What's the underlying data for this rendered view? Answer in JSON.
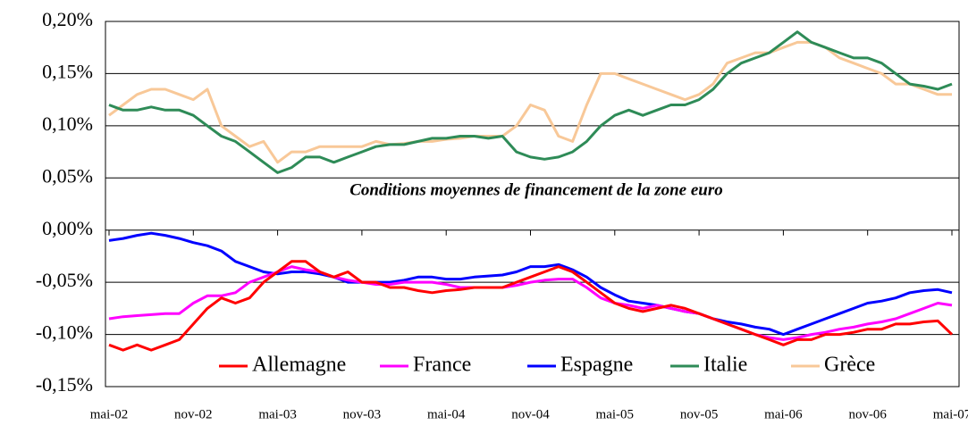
{
  "chart_data": {
    "type": "line",
    "annotation": "Conditions moyennes de financement de la zone euro",
    "categories": [
      "mai-02",
      null,
      null,
      null,
      null,
      null,
      "nov-02",
      null,
      null,
      null,
      null,
      null,
      "mai-03",
      null,
      null,
      null,
      null,
      null,
      "nov-03",
      null,
      null,
      null,
      null,
      null,
      "mai-04",
      null,
      null,
      null,
      null,
      null,
      "nov-04",
      null,
      null,
      null,
      null,
      null,
      "mai-05",
      null,
      null,
      null,
      null,
      null,
      "nov-05",
      null,
      null,
      null,
      null,
      null,
      "mai-06",
      null,
      null,
      null,
      null,
      null,
      "nov-06",
      null,
      null,
      null,
      null,
      null,
      "mai-07"
    ],
    "series": [
      {
        "name": "Allemagne",
        "color": "#ff0000",
        "values": [
          -0.11,
          -0.115,
          -0.11,
          -0.115,
          -0.11,
          -0.105,
          -0.09,
          -0.075,
          -0.065,
          -0.07,
          -0.065,
          -0.05,
          -0.04,
          -0.03,
          -0.03,
          -0.04,
          -0.045,
          -0.04,
          -0.05,
          -0.05,
          -0.055,
          -0.055,
          -0.058,
          -0.06,
          -0.058,
          -0.057,
          -0.055,
          -0.055,
          -0.055,
          -0.05,
          -0.045,
          -0.04,
          -0.035,
          -0.04,
          -0.05,
          -0.06,
          -0.07,
          -0.075,
          -0.078,
          -0.075,
          -0.072,
          -0.075,
          -0.08,
          -0.085,
          -0.09,
          -0.095,
          -0.1,
          -0.105,
          -0.11,
          -0.105,
          -0.105,
          -0.1,
          -0.1,
          -0.098,
          -0.095,
          -0.095,
          -0.09,
          -0.09,
          -0.088,
          -0.087,
          -0.1
        ]
      },
      {
        "name": "France",
        "color": "#ff00ff",
        "values": [
          -0.085,
          -0.083,
          -0.082,
          -0.081,
          -0.08,
          -0.08,
          -0.07,
          -0.063,
          -0.063,
          -0.06,
          -0.05,
          -0.045,
          -0.04,
          -0.035,
          -0.038,
          -0.04,
          -0.045,
          -0.048,
          -0.05,
          -0.052,
          -0.052,
          -0.05,
          -0.05,
          -0.05,
          -0.052,
          -0.055,
          -0.055,
          -0.055,
          -0.055,
          -0.053,
          -0.05,
          -0.048,
          -0.047,
          -0.047,
          -0.055,
          -0.065,
          -0.07,
          -0.072,
          -0.075,
          -0.072,
          -0.075,
          -0.078,
          -0.08,
          -0.085,
          -0.09,
          -0.095,
          -0.1,
          -0.103,
          -0.105,
          -0.103,
          -0.1,
          -0.098,
          -0.095,
          -0.093,
          -0.09,
          -0.088,
          -0.085,
          -0.08,
          -0.075,
          -0.07,
          -0.072
        ]
      },
      {
        "name": "Espagne",
        "color": "#0000ff",
        "values": [
          -0.01,
          -0.008,
          -0.005,
          -0.003,
          -0.005,
          -0.008,
          -0.012,
          -0.015,
          -0.02,
          -0.03,
          -0.035,
          -0.04,
          -0.042,
          -0.04,
          -0.04,
          -0.042,
          -0.045,
          -0.05,
          -0.05,
          -0.05,
          -0.05,
          -0.048,
          -0.045,
          -0.045,
          -0.047,
          -0.047,
          -0.045,
          -0.044,
          -0.043,
          -0.04,
          -0.035,
          -0.035,
          -0.033,
          -0.038,
          -0.045,
          -0.055,
          -0.062,
          -0.068,
          -0.07,
          -0.072,
          -0.075,
          -0.078,
          -0.08,
          -0.085,
          -0.088,
          -0.09,
          -0.093,
          -0.095,
          -0.1,
          -0.095,
          -0.09,
          -0.085,
          -0.08,
          -0.075,
          -0.07,
          -0.068,
          -0.065,
          -0.06,
          -0.058,
          -0.057,
          -0.06
        ]
      },
      {
        "name": "Italie",
        "color": "#2e8b57",
        "values": [
          0.12,
          0.115,
          0.115,
          0.118,
          0.115,
          0.115,
          0.11,
          0.1,
          0.09,
          0.085,
          0.075,
          0.065,
          0.055,
          0.06,
          0.07,
          0.07,
          0.065,
          0.07,
          0.075,
          0.08,
          0.082,
          0.082,
          0.085,
          0.088,
          0.088,
          0.09,
          0.09,
          0.088,
          0.09,
          0.075,
          0.07,
          0.068,
          0.07,
          0.075,
          0.085,
          0.1,
          0.11,
          0.115,
          0.11,
          0.115,
          0.12,
          0.12,
          0.125,
          0.135,
          0.15,
          0.16,
          0.165,
          0.17,
          0.18,
          0.19,
          0.18,
          0.175,
          0.17,
          0.165,
          0.165,
          0.16,
          0.15,
          0.14,
          0.138,
          0.135,
          0.14
        ]
      },
      {
        "name": "Grèce",
        "color": "#f8c898",
        "values": [
          0.11,
          0.12,
          0.13,
          0.135,
          0.135,
          0.13,
          0.125,
          0.135,
          0.1,
          0.09,
          0.08,
          0.085,
          0.065,
          0.075,
          0.075,
          0.08,
          0.08,
          0.08,
          0.08,
          0.085,
          0.082,
          0.083,
          0.085,
          0.085,
          0.087,
          0.088,
          0.09,
          0.09,
          0.09,
          0.1,
          0.12,
          0.115,
          0.09,
          0.085,
          0.12,
          0.15,
          0.15,
          0.145,
          0.14,
          0.135,
          0.13,
          0.125,
          0.13,
          0.14,
          0.16,
          0.165,
          0.17,
          0.17,
          0.175,
          0.18,
          0.18,
          0.175,
          0.165,
          0.16,
          0.155,
          0.15,
          0.14,
          0.14,
          0.135,
          0.13,
          0.13
        ]
      }
    ],
    "ylim": [
      -0.15,
      0.2
    ],
    "yticks": [
      {
        "value": -0.15,
        "label": "-0,15%"
      },
      {
        "value": -0.1,
        "label": "-0,10%"
      },
      {
        "value": -0.05,
        "label": "-0,05%"
      },
      {
        "value": 0,
        "label": "0,00%"
      },
      {
        "value": 0.05,
        "label": "0,05%"
      },
      {
        "value": 0.1,
        "label": "0,10%"
      },
      {
        "value": 0.15,
        "label": "0,15%"
      },
      {
        "value": 0.2,
        "label": "0,20%"
      }
    ],
    "grid": true
  }
}
